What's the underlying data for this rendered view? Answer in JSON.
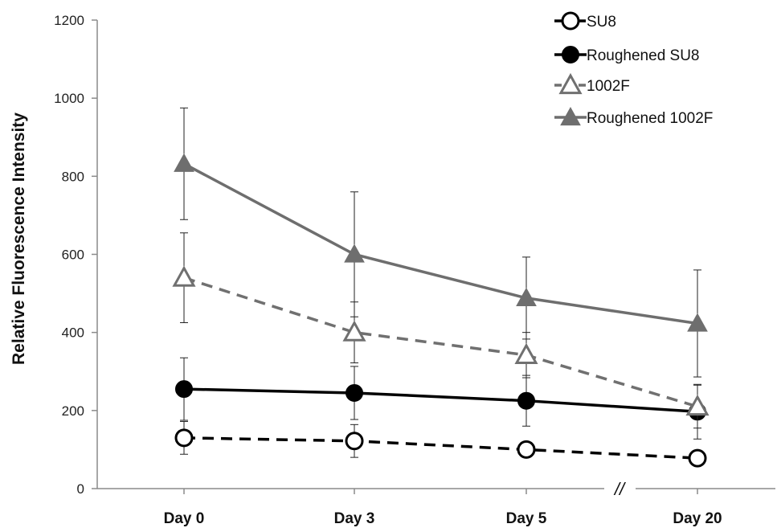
{
  "chart_data": {
    "type": "line",
    "title": "",
    "xlabel": "",
    "ylabel": "Relative Fluorescence Intensity",
    "categories": [
      "Day 0",
      "Day 3",
      "Day 5",
      "Day 20"
    ],
    "ylim": [
      0,
      1200
    ],
    "yticks": [
      0,
      200,
      400,
      600,
      800,
      1000,
      1200
    ],
    "axis_break": "//",
    "grid": false,
    "legend_position": "top-right",
    "series": [
      {
        "name": "SU8",
        "values": [
          130,
          122,
          100,
          78
        ],
        "errors": [
          42,
          42,
          8,
          14
        ],
        "color": "#000000",
        "line_style": "dashed",
        "marker": "circle-open"
      },
      {
        "name": "Roughened SU8",
        "values": [
          255,
          245,
          225,
          197
        ],
        "errors": [
          80,
          68,
          65,
          70
        ],
        "color": "#000000",
        "line_style": "solid",
        "marker": "circle-filled"
      },
      {
        "name": "1002F",
        "values": [
          540,
          400,
          342,
          210
        ],
        "errors": [
          115,
          78,
          58,
          55
        ],
        "color": "#707070",
        "line_style": "dashed",
        "marker": "triangle-open"
      },
      {
        "name": "Roughened 1002F",
        "values": [
          832,
          600,
          488,
          423
        ],
        "errors": [
          143,
          160,
          105,
          137
        ],
        "color": "#6e6e6e",
        "line_style": "solid",
        "marker": "triangle-filled"
      }
    ]
  }
}
